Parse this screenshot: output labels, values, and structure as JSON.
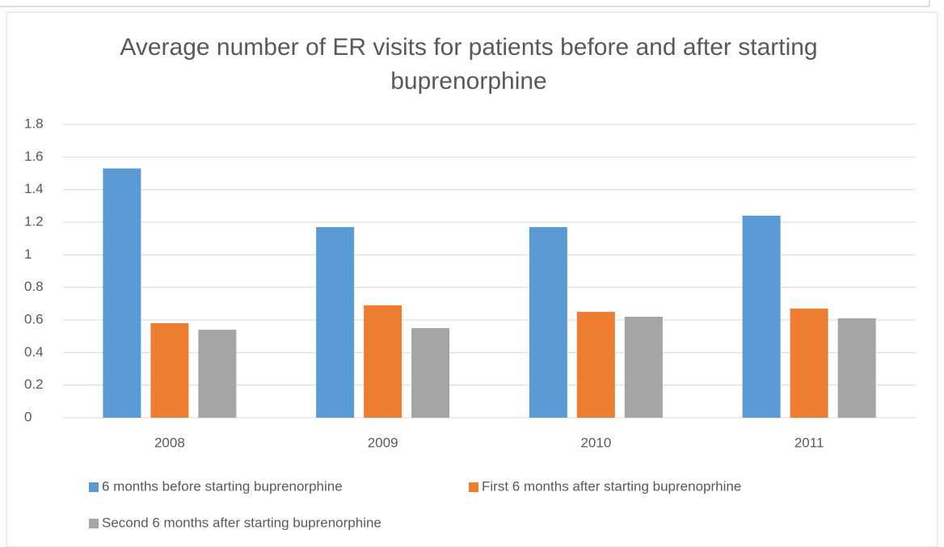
{
  "chart_data": {
    "type": "bar",
    "title": "Average number of ER visits for patients before and after starting buprenorphine",
    "categories": [
      "2008",
      "2009",
      "2010",
      "2011"
    ],
    "series": [
      {
        "name": "6 months before starting buprenorphine",
        "color": "#5b9bd5",
        "values": [
          1.53,
          1.17,
          1.17,
          1.24
        ]
      },
      {
        "name": "First 6 months after starting buprenoprhine",
        "color": "#ed7d31",
        "values": [
          0.58,
          0.69,
          0.65,
          0.67
        ]
      },
      {
        "name": "Second 6 months after starting buprenorphine",
        "color": "#a5a5a5",
        "values": [
          0.54,
          0.55,
          0.62,
          0.61
        ]
      }
    ],
    "ylim": [
      0,
      1.8
    ],
    "yticks": [
      0,
      0.2,
      0.4,
      0.6,
      0.8,
      1,
      1.2,
      1.4,
      1.6,
      1.8
    ],
    "grid": true,
    "legend": "bottom"
  }
}
